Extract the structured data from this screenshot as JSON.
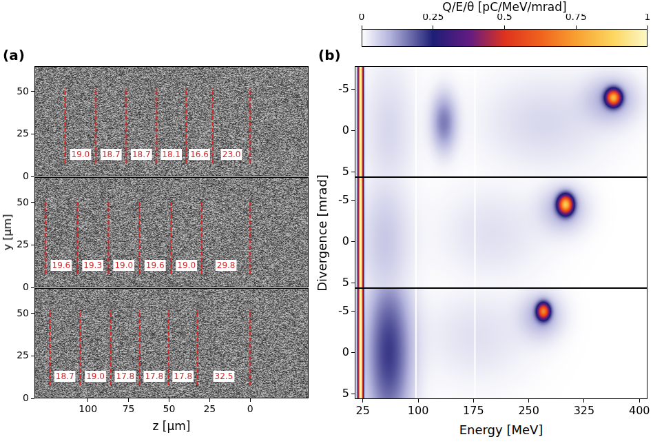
{
  "chart_data": [
    {
      "type": "image",
      "title": "(a)",
      "xlim": [
        133,
        -36
      ],
      "xticks": [
        100,
        75,
        50,
        25,
        0
      ],
      "ylim": [
        0,
        65
      ],
      "yticks": [
        0,
        25,
        50
      ],
      "grid": false,
      "tick_labels": "y",
      "lines": [
        114.1,
        95.1,
        76.4,
        57.7,
        39.6,
        23.0,
        0
      ],
      "values": [
        19.0,
        18.7,
        18.7,
        18.1,
        16.6,
        23.0
      ],
      "value_labels": [
        "19.0",
        "18.7",
        "18.7",
        "18.1",
        "16.6",
        "23.0"
      ],
      "data_labels": true,
      "color": "#d62728",
      "line_style": "dashed"
    },
    {
      "type": "image",
      "ylabel": "y [μm]",
      "xlim": [
        133,
        -36
      ],
      "xticks": [
        100,
        75,
        50,
        25,
        0
      ],
      "ylim": [
        0,
        65
      ],
      "yticks": [
        0,
        25,
        50
      ],
      "grid": false,
      "tick_labels": "y",
      "lines": [
        126.3,
        106.7,
        87.4,
        68.4,
        48.8,
        29.8,
        0
      ],
      "values": [
        19.6,
        19.3,
        19.0,
        19.6,
        19.0,
        29.8
      ],
      "value_labels": [
        "19.6",
        "19.3",
        "19.0",
        "19.6",
        "19.0",
        "29.8"
      ],
      "data_labels": true,
      "color": "#d62728",
      "line_style": "dashed"
    },
    {
      "type": "image",
      "xlabel": "z [μm]",
      "xlim": [
        133,
        -36
      ],
      "xticks": [
        100,
        75,
        50,
        25,
        0
      ],
      "ylim": [
        0,
        65
      ],
      "yticks": [
        0,
        25,
        50
      ],
      "grid": false,
      "lines": [
        123.6,
        104.9,
        85.9,
        68.1,
        50.3,
        32.5,
        0
      ],
      "values": [
        18.7,
        19.0,
        17.8,
        17.8,
        17.8,
        32.5
      ],
      "value_labels": [
        "18.7",
        "19.0",
        "17.8",
        "17.8",
        "17.8",
        "32.5"
      ],
      "data_labels": true,
      "color": "#d62728",
      "line_style": "dashed"
    },
    {
      "type": "heatmap",
      "title": "(b)",
      "xlim": [
        14,
        411
      ],
      "xticks": [
        25,
        100,
        175,
        250,
        325,
        400
      ],
      "ylim": [
        5.6,
        -7.8
      ],
      "yticks": [
        -5,
        0,
        5
      ],
      "grid": false,
      "tick_labels": "y",
      "gaps": [
        97,
        177
      ],
      "features": [
        {
          "energy": 22,
          "divergence": 0,
          "energy_width": 2.2,
          "divergence_width": 100,
          "value": 1
        },
        {
          "energy": 60,
          "divergence": 0,
          "energy_width": 25,
          "divergence_width": 6,
          "value": 0.05
        },
        {
          "energy": 135,
          "divergence": -1,
          "energy_width": 12,
          "divergence_width": 2.5,
          "value": 0.15
        },
        {
          "energy": 270,
          "divergence": -1,
          "energy_width": 60,
          "divergence_width": 4,
          "value": 0.05
        },
        {
          "energy": 363,
          "divergence": -3.8,
          "energy_width": 25,
          "divergence_width": 2,
          "value": 0.1
        },
        {
          "energy": 365,
          "divergence": -4,
          "energy_width": 7,
          "divergence_width": 0.7,
          "value": 0.7
        }
      ]
    },
    {
      "type": "heatmap",
      "ylabel": "Divergence [mrad]",
      "xlim": [
        14,
        411
      ],
      "xticks": [
        25,
        100,
        175,
        250,
        325,
        400
      ],
      "ylim": [
        5.6,
        -7.8
      ],
      "yticks": [
        -5,
        0,
        5
      ],
      "grid": false,
      "tick_labels": "y",
      "gaps": [
        97,
        177
      ],
      "features": [
        {
          "energy": 22,
          "divergence": 0,
          "energy_width": 2.2,
          "divergence_width": 100,
          "value": 1
        },
        {
          "energy": 55,
          "divergence": 0,
          "energy_width": 25,
          "divergence_width": 6,
          "value": 0.07
        },
        {
          "energy": 200,
          "divergence": -1,
          "energy_width": 50,
          "divergence_width": 4,
          "value": 0.04
        },
        {
          "energy": 298,
          "divergence": -4,
          "energy_width": 22,
          "divergence_width": 2,
          "value": 0.1
        },
        {
          "energy": 300,
          "divergence": -4.5,
          "energy_width": 7,
          "divergence_width": 0.8,
          "value": 0.75
        }
      ]
    },
    {
      "type": "heatmap",
      "xlabel": "Energy [MeV]",
      "xlim": [
        14,
        411
      ],
      "xticks": [
        25,
        100,
        175,
        250,
        325,
        400
      ],
      "ylim": [
        5.6,
        -7.8
      ],
      "yticks": [
        -5,
        0,
        5
      ],
      "grid": false,
      "gaps": [
        97,
        177
      ],
      "features": [
        {
          "energy": 22,
          "divergence": 0,
          "energy_width": 2.2,
          "divergence_width": 100,
          "value": 1
        },
        {
          "energy": 60,
          "divergence": 0,
          "energy_width": 22,
          "divergence_width": 7,
          "value": 0.22
        },
        {
          "energy": 180,
          "divergence": -2,
          "energy_width": 50,
          "divergence_width": 4,
          "value": 0.04
        },
        {
          "energy": 268,
          "divergence": -4.5,
          "energy_width": 20,
          "divergence_width": 2,
          "value": 0.1
        },
        {
          "energy": 270,
          "divergence": -5,
          "energy_width": 6,
          "divergence_width": 0.7,
          "value": 0.6
        }
      ]
    },
    {
      "type": "colorbar",
      "title": "Q/E/θ [pC/MeV/mrad]",
      "xlim": [
        0,
        1
      ],
      "xticks": [
        0,
        0.25,
        0.5,
        0.75,
        1
      ],
      "tick_labels": "x"
    }
  ]
}
